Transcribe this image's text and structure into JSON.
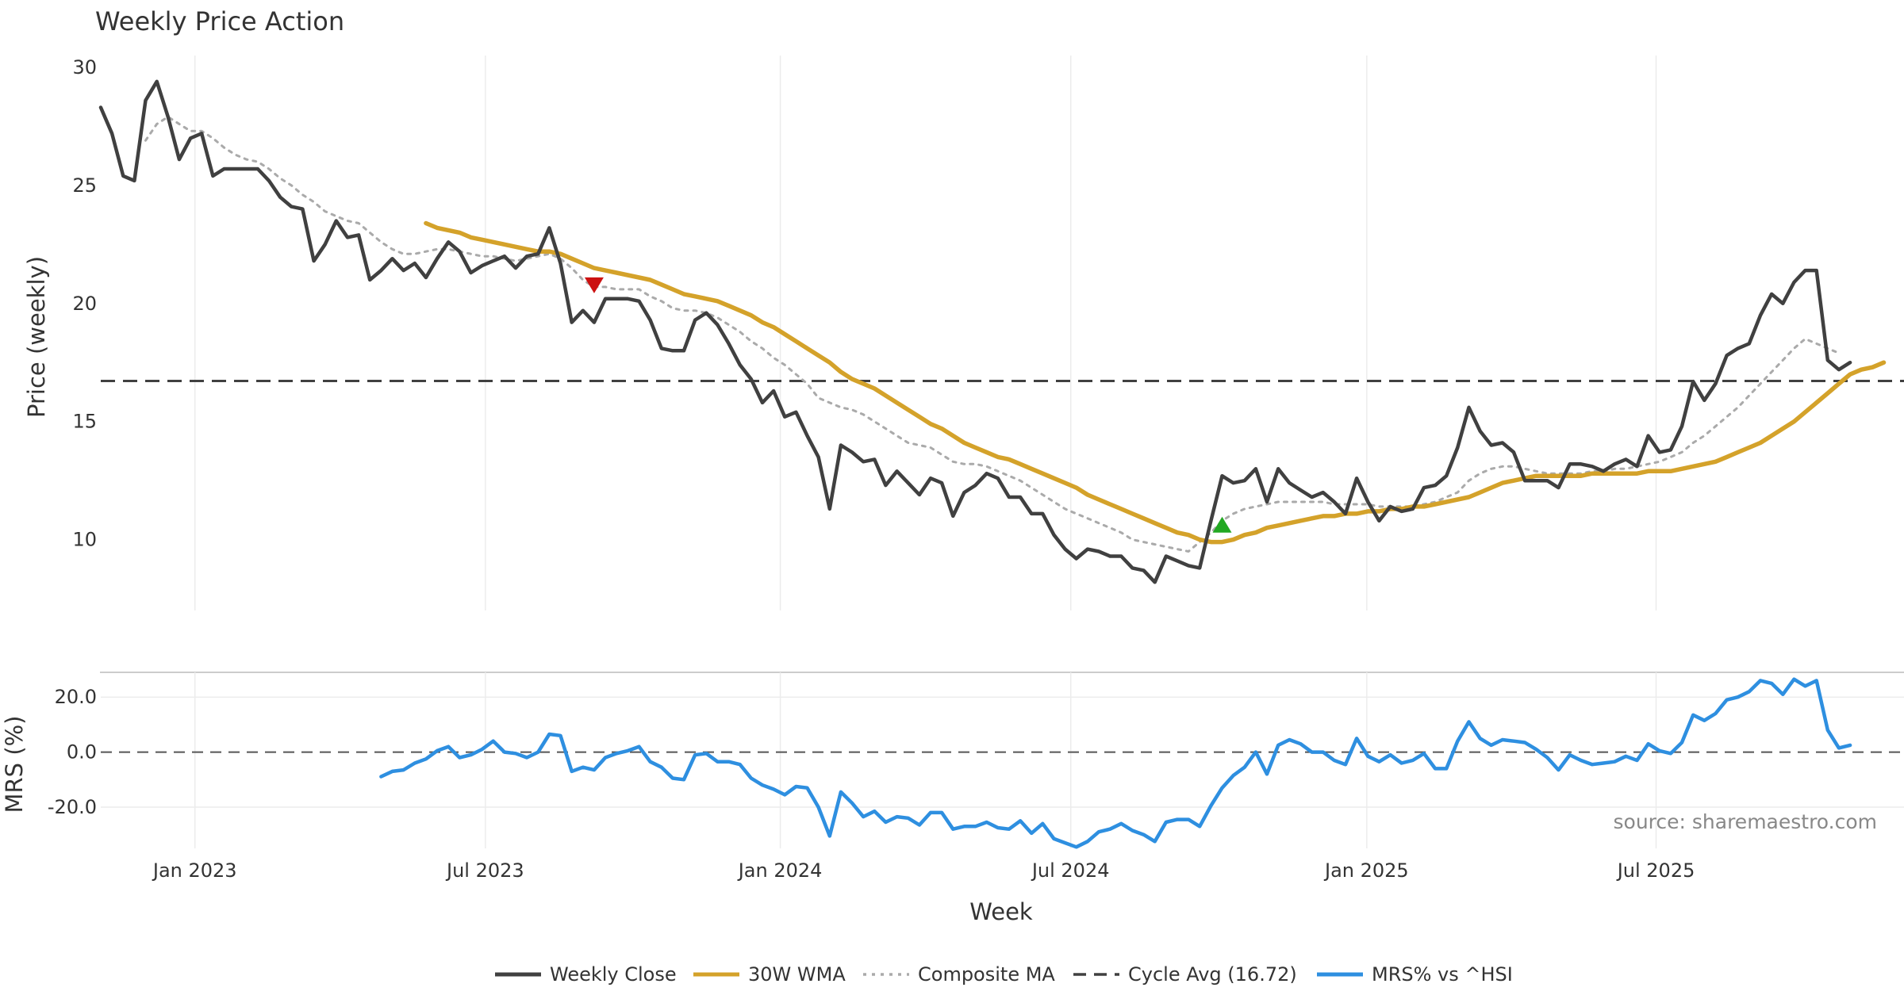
{
  "title": "Weekly Price Action",
  "source": "source: sharemaestro.com",
  "legend": [
    {
      "label": "Weekly Close",
      "color": "#404040",
      "dash": "solid"
    },
    {
      "label": "30W WMA",
      "color": "#d4a22a",
      "dash": "solid"
    },
    {
      "label": "Composite MA",
      "color": "#aaaaaa",
      "dash": "dotted"
    },
    {
      "label": "Cycle Avg (16.72)",
      "color": "#404040",
      "dash": "dashed"
    },
    {
      "label": "MRS% vs ^HSI",
      "color": "#2e8fe0",
      "dash": "solid"
    }
  ],
  "chart_data": [
    {
      "type": "line",
      "title": "Weekly Price Action",
      "ylabel": "Price (weekly)",
      "xlabel": "Week",
      "x_start": "2022-11-07",
      "x_unit": "week",
      "ylim": [
        7,
        30.5
      ],
      "yticks": [
        10,
        15,
        20,
        25,
        30
      ],
      "xticks": [
        {
          "label": "Jan 2023",
          "week": 8.4
        },
        {
          "label": "Jul 2023",
          "week": 34.3
        },
        {
          "label": "Jan 2024",
          "week": 60.6
        },
        {
          "label": "Jul 2024",
          "week": 86.5
        },
        {
          "label": "Jan 2025",
          "week": 112.9
        },
        {
          "label": "Jul 2025",
          "week": 138.7
        }
      ],
      "hline": {
        "name": "Cycle Avg",
        "value": 16.72
      },
      "markers": [
        {
          "type": "sell",
          "week": 44,
          "value": 20.8,
          "color": "#cc1111"
        },
        {
          "type": "buy",
          "week": 100,
          "value": 10.6,
          "color": "#22a822"
        }
      ],
      "series": [
        {
          "name": "Weekly Close",
          "color": "#404040",
          "start_week": 0,
          "values": [
            28.3,
            27.2,
            25.4,
            25.2,
            28.6,
            29.4,
            27.9,
            26.1,
            27.0,
            27.2,
            25.4,
            25.7,
            25.7,
            25.7,
            25.7,
            25.2,
            24.5,
            24.1,
            24.0,
            21.8,
            22.5,
            23.5,
            22.8,
            22.9,
            21.0,
            21.4,
            21.9,
            21.4,
            21.7,
            21.1,
            21.9,
            22.6,
            22.2,
            21.3,
            21.6,
            21.8,
            22.0,
            21.5,
            22.0,
            22.1,
            23.2,
            21.7,
            19.2,
            19.7,
            19.2,
            20.2,
            20.2,
            20.2,
            20.1,
            19.3,
            18.1,
            18.0,
            18.0,
            19.3,
            19.6,
            19.1,
            18.3,
            17.4,
            16.8,
            15.8,
            16.3,
            15.2,
            15.4,
            14.4,
            13.5,
            11.3,
            14.0,
            13.7,
            13.3,
            13.4,
            12.3,
            12.9,
            12.4,
            11.9,
            12.6,
            12.4,
            11.0,
            12.0,
            12.3,
            12.8,
            12.6,
            11.8,
            11.8,
            11.1,
            11.1,
            10.2,
            9.6,
            9.2,
            9.6,
            9.5,
            9.3,
            9.3,
            8.8,
            8.7,
            8.2,
            9.3,
            9.1,
            8.9,
            8.8,
            10.8,
            12.7,
            12.4,
            12.5,
            13.0,
            11.6,
            13.0,
            12.4,
            12.1,
            11.8,
            12.0,
            11.6,
            11.1,
            12.6,
            11.6,
            10.8,
            11.4,
            11.2,
            11.3,
            12.2,
            12.3,
            12.7,
            13.9,
            15.6,
            14.6,
            14.0,
            14.1,
            13.7,
            12.5,
            12.5,
            12.5,
            12.2,
            13.2,
            13.2,
            13.1,
            12.9,
            13.2,
            13.4,
            13.1,
            14.4,
            13.7,
            13.8,
            14.8,
            16.7,
            15.9,
            16.6,
            17.8,
            18.1,
            18.3,
            19.5,
            20.4,
            20.0,
            20.9,
            21.4,
            21.4,
            17.6,
            17.2,
            17.5
          ]
        },
        {
          "name": "30W WMA",
          "color": "#d4a22a",
          "start_week": 29,
          "values": [
            23.4,
            23.2,
            23.1,
            23.0,
            22.8,
            22.7,
            22.6,
            22.5,
            22.4,
            22.3,
            22.2,
            22.2,
            22.1,
            21.9,
            21.7,
            21.5,
            21.4,
            21.3,
            21.2,
            21.1,
            21.0,
            20.8,
            20.6,
            20.4,
            20.3,
            20.2,
            20.1,
            19.9,
            19.7,
            19.5,
            19.2,
            19.0,
            18.7,
            18.4,
            18.1,
            17.8,
            17.5,
            17.1,
            16.8,
            16.6,
            16.4,
            16.1,
            15.8,
            15.5,
            15.2,
            14.9,
            14.7,
            14.4,
            14.1,
            13.9,
            13.7,
            13.5,
            13.4,
            13.2,
            13.0,
            12.8,
            12.6,
            12.4,
            12.2,
            11.9,
            11.7,
            11.5,
            11.3,
            11.1,
            10.9,
            10.7,
            10.5,
            10.3,
            10.2,
            10.0,
            9.9,
            9.9,
            10.0,
            10.2,
            10.3,
            10.5,
            10.6,
            10.7,
            10.8,
            10.9,
            11.0,
            11.0,
            11.1,
            11.1,
            11.2,
            11.2,
            11.3,
            11.3,
            11.4,
            11.4,
            11.5,
            11.6,
            11.7,
            11.8,
            12.0,
            12.2,
            12.4,
            12.5,
            12.6,
            12.7,
            12.7,
            12.7,
            12.7,
            12.7,
            12.8,
            12.8,
            12.8,
            12.8,
            12.8,
            12.9,
            12.9,
            12.9,
            13.0,
            13.1,
            13.2,
            13.3,
            13.5,
            13.7,
            13.9,
            14.1,
            14.4,
            14.7,
            15.0,
            15.4,
            15.8,
            16.2,
            16.6,
            17.0,
            17.2,
            17.3,
            17.5
          ]
        },
        {
          "name": "Composite MA",
          "color": "#aaaaaa",
          "dash": "dotted",
          "start_week": 4,
          "values": [
            26.9,
            27.6,
            27.9,
            27.6,
            27.3,
            27.3,
            27.0,
            26.6,
            26.3,
            26.1,
            26.0,
            25.7,
            25.3,
            25.0,
            24.6,
            24.3,
            23.9,
            23.7,
            23.5,
            23.4,
            23.0,
            22.6,
            22.3,
            22.1,
            22.1,
            22.2,
            22.3,
            22.3,
            22.2,
            22.1,
            22.0,
            22.0,
            21.9,
            21.8,
            21.9,
            22.0,
            22.1,
            21.9,
            21.5,
            21.0,
            20.7,
            20.7,
            20.6,
            20.6,
            20.6,
            20.3,
            20.1,
            19.8,
            19.7,
            19.7,
            19.6,
            19.4,
            19.1,
            18.8,
            18.4,
            18.1,
            17.7,
            17.4,
            17.0,
            16.6,
            16.0,
            15.8,
            15.6,
            15.5,
            15.3,
            15.0,
            14.7,
            14.4,
            14.1,
            14.0,
            13.9,
            13.6,
            13.3,
            13.2,
            13.2,
            13.1,
            12.9,
            12.7,
            12.5,
            12.2,
            11.9,
            11.6,
            11.3,
            11.1,
            10.9,
            10.7,
            10.5,
            10.3,
            10.0,
            9.9,
            9.8,
            9.7,
            9.6,
            9.5,
            9.9,
            10.3,
            10.8,
            11.1,
            11.3,
            11.4,
            11.5,
            11.6,
            11.6,
            11.6,
            11.6,
            11.6,
            11.5,
            11.5,
            11.5,
            11.5,
            11.4,
            11.4,
            11.4,
            11.4,
            11.5,
            11.6,
            11.8,
            12.0,
            12.5,
            12.8,
            13.0,
            13.1,
            13.1,
            13.0,
            12.9,
            12.8,
            12.8,
            12.8,
            12.8,
            12.9,
            12.9,
            13.0,
            13.0,
            13.1,
            13.2,
            13.3,
            13.5,
            13.7,
            14.1,
            14.4,
            14.8,
            15.2,
            15.6,
            16.1,
            16.6,
            17.1,
            17.6,
            18.1,
            18.5,
            18.3,
            18.1,
            17.9
          ]
        }
      ]
    },
    {
      "type": "line",
      "ylabel": "MRS (%)",
      "ylim": [
        -35,
        29
      ],
      "yticks": [
        -20.0,
        0.0,
        20.0
      ],
      "hline": {
        "value": 0.0
      },
      "series": [
        {
          "name": "MRS% vs ^HSI",
          "color": "#2e8fe0",
          "start_week": 25,
          "values": [
            -8.9,
            -7.0,
            -6.5,
            -4.0,
            -2.5,
            0.5,
            2.0,
            -2.0,
            -1.0,
            1.0,
            4.0,
            0.0,
            -0.5,
            -2.0,
            0.0,
            6.5,
            6.0,
            -7.0,
            -5.5,
            -6.5,
            -2.0,
            -0.5,
            0.5,
            2.0,
            -3.5,
            -5.5,
            -9.5,
            -10.0,
            -1.0,
            -0.5,
            -3.5,
            -3.5,
            -4.5,
            -9.5,
            -12.0,
            -13.5,
            -15.5,
            -12.5,
            -13.0,
            -20.0,
            -30.5,
            -14.5,
            -18.5,
            -23.5,
            -21.5,
            -25.5,
            -23.5,
            -24.0,
            -26.5,
            -22.0,
            -22.0,
            -28.0,
            -27.0,
            -27.0,
            -25.5,
            -27.5,
            -28.0,
            -25.0,
            -29.5,
            -26.0,
            -31.5,
            -33.0,
            -34.5,
            -32.5,
            -29.0,
            -28.0,
            -26.0,
            -28.5,
            -30.0,
            -32.5,
            -25.5,
            -24.5,
            -24.5,
            -27.0,
            -19.5,
            -13.0,
            -8.5,
            -5.5,
            0.0,
            -8.0,
            2.5,
            4.5,
            3.0,
            0.0,
            0.0,
            -3.0,
            -4.5,
            5.0,
            -1.5,
            -3.5,
            -1.0,
            -4.0,
            -3.0,
            -0.5,
            -6.0,
            -6.0,
            4.0,
            11.0,
            5.0,
            2.5,
            4.5,
            4.0,
            3.5,
            1.0,
            -2.0,
            -6.5,
            -1.0,
            -3.0,
            -4.5,
            -4.0,
            -3.5,
            -1.5,
            -3.0,
            3.0,
            0.5,
            -0.5,
            3.5,
            13.5,
            11.5,
            14.0,
            19.0,
            20.0,
            22.0,
            26.0,
            25.0,
            21.0,
            26.5,
            24.0,
            26.0,
            8.0,
            1.5,
            2.5
          ]
        }
      ]
    }
  ]
}
